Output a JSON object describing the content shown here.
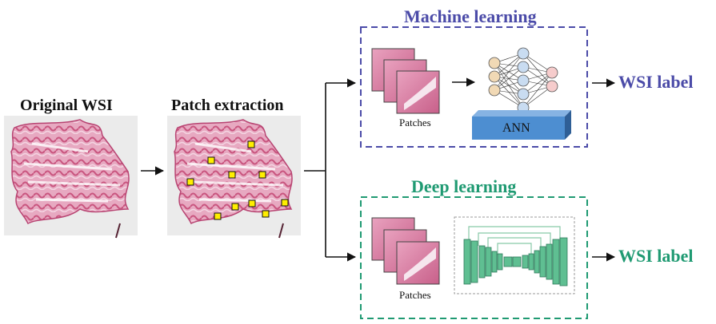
{
  "stages": {
    "original": "Original WSI",
    "patch_extraction": "Patch extraction"
  },
  "machine_learning": {
    "title": "Machine learning",
    "patches_label": "Patches",
    "model_label": "ANN",
    "output_label": "WSI label",
    "color": "#4b4ba8"
  },
  "deep_learning": {
    "title": "Deep learning",
    "patches_label": "Patches",
    "output_label": "WSI label",
    "color": "#1f9a72"
  },
  "tissue_color": "#d86a93",
  "patch_marker_color": "#ffee00"
}
